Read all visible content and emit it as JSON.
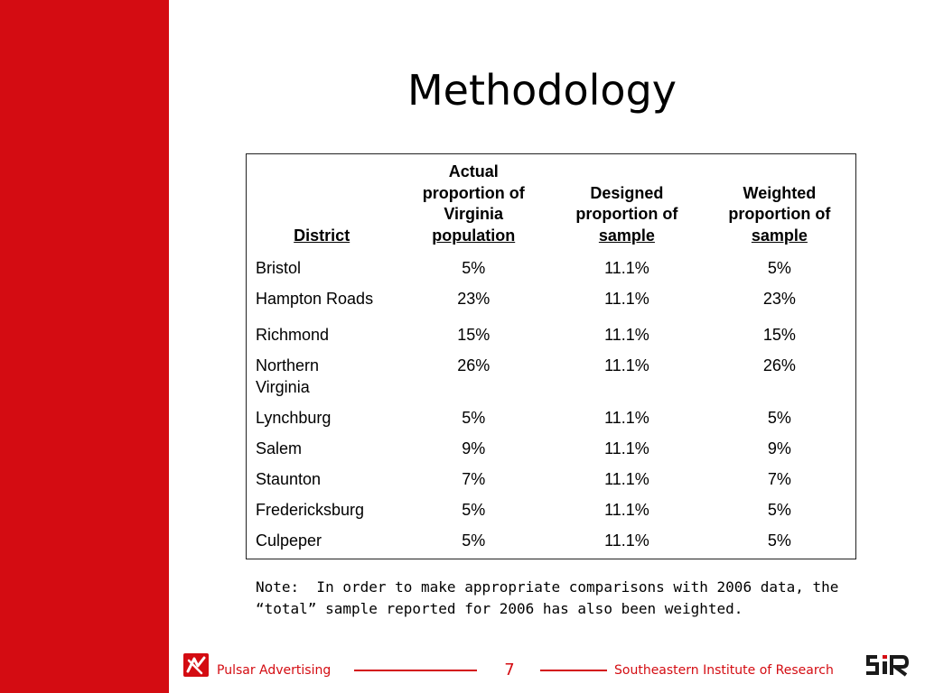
{
  "slide": {
    "title": "Methodology",
    "accent_color": "#d40c12"
  },
  "table": {
    "headers": {
      "district": "District",
      "actual_line1": "Actual",
      "actual_line2": "proportion of",
      "actual_line3": "Virginia",
      "actual_line4": "population",
      "designed_line1": "Designed",
      "designed_line2": "proportion of",
      "designed_line3": "sample",
      "weighted_line1": "Weighted",
      "weighted_line2": "proportion of",
      "weighted_line3": "sample"
    },
    "rows": [
      {
        "district": "Bristol",
        "actual": "5%",
        "designed": "11.1%",
        "weighted": "5%"
      },
      {
        "district": "Hampton Roads",
        "actual": "23%",
        "designed": "11.1%",
        "weighted": "23%"
      },
      {
        "district": "Richmond",
        "actual": "15%",
        "designed": "11.1%",
        "weighted": "15%"
      },
      {
        "district_line1": "Northern",
        "district_line2": "Virginia",
        "actual": "26%",
        "designed": "11.1%",
        "weighted": "26%"
      },
      {
        "district": "Lynchburg",
        "actual": "5%",
        "designed": "11.1%",
        "weighted": "5%"
      },
      {
        "district": "Salem",
        "actual": "9%",
        "designed": "11.1%",
        "weighted": "9%"
      },
      {
        "district": "Staunton",
        "actual": "7%",
        "designed": "11.1%",
        "weighted": "7%"
      },
      {
        "district": "Fredericksburg",
        "actual": "5%",
        "designed": "11.1%",
        "weighted": "5%"
      },
      {
        "district": "Culpeper",
        "actual": "5%",
        "designed": "11.1%",
        "weighted": "5%"
      }
    ]
  },
  "note": {
    "line1": "Note:  In order to make appropriate comparisons with 2006 data, the",
    "line2": "“total” sample reported for 2006 has also been weighted."
  },
  "footer": {
    "left_text": "Pulsar Advertising",
    "page_number": "7",
    "right_text": "Southeastern Institute of Research",
    "left_logo_icon": "pulsar-logo-icon",
    "right_logo_icon": "sir-logo-icon"
  }
}
